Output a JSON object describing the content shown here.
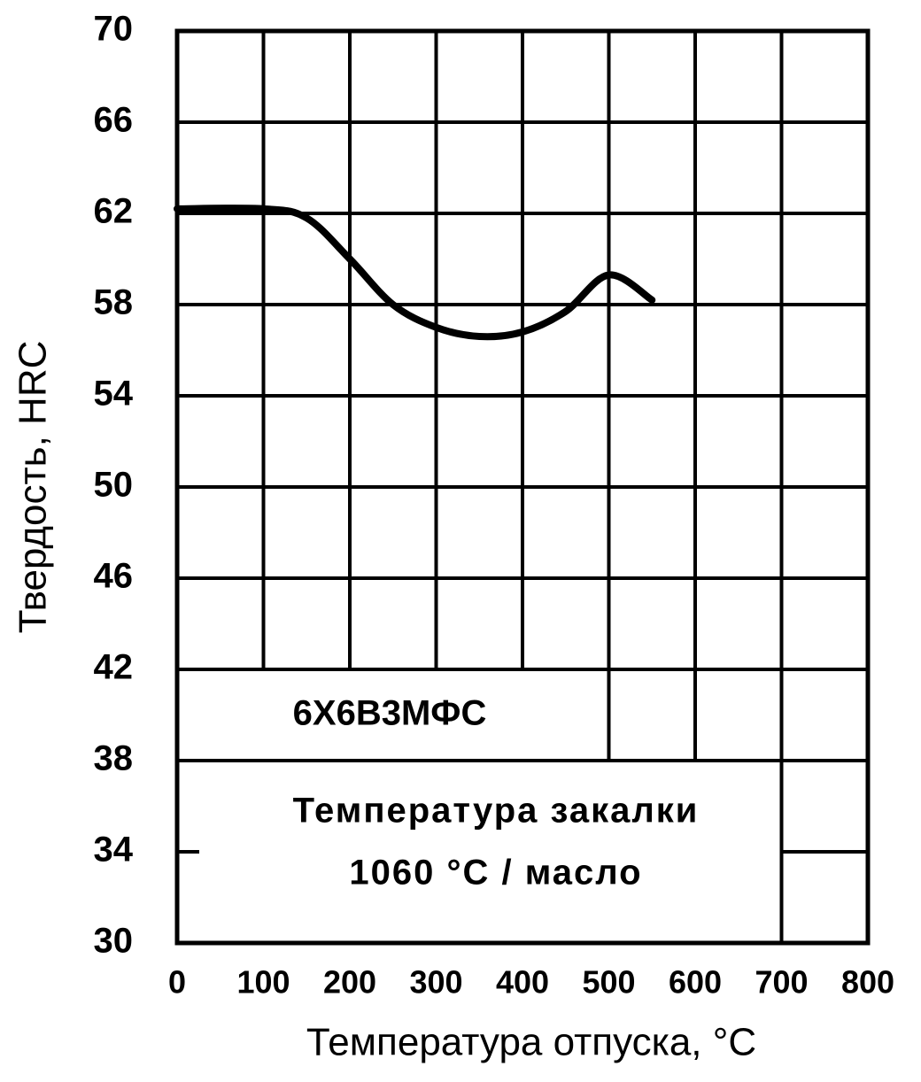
{
  "chart_data": {
    "type": "line",
    "xlabel": "Температура отпуска, °C",
    "ylabel": "Твердость, HRC",
    "annotations": [
      "6Х6В3МФС",
      "Температура закалки",
      "1060 °C / масло"
    ],
    "x": [
      0,
      100,
      150,
      200,
      250,
      300,
      350,
      400,
      450,
      500,
      550
    ],
    "series": [
      {
        "name": "6Х6В3МФС",
        "color": "#000000",
        "values": [
          62.2,
          62.2,
          61.8,
          60,
          58,
          57,
          56.6,
          56.8,
          57.7,
          59.3,
          58.2
        ]
      }
    ],
    "xlim": [
      0,
      800
    ],
    "xticks": [
      0,
      100,
      200,
      300,
      400,
      500,
      600,
      700,
      800
    ],
    "ylim": [
      30,
      70
    ],
    "yticks": [
      30,
      34,
      38,
      42,
      46,
      50,
      54,
      58,
      62,
      66,
      70
    ],
    "grid": true
  }
}
